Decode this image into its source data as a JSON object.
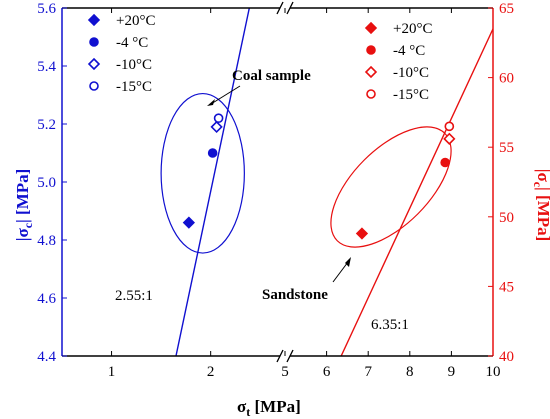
{
  "chart_data": {
    "type": "scatter",
    "x_axis": {
      "label_main": "σ",
      "label_sub": "t",
      "label_unit": " [MPa]",
      "left_segment": {
        "range": [
          0.5,
          2.75
        ],
        "ticks": [
          1,
          2
        ]
      },
      "right_segment": {
        "range": [
          5,
          10
        ],
        "ticks": [
          5,
          6,
          7,
          8,
          9,
          10
        ]
      },
      "break": true
    },
    "y_left": {
      "label_main": "|σ",
      "label_sub": "c",
      "label_unit": "| [MPa]",
      "range": [
        4.4,
        5.6
      ],
      "ticks": [
        "4.4",
        "4.6",
        "4.8",
        "5.0",
        "5.2",
        "5.4",
        "5.6"
      ],
      "color": "#1010d0"
    },
    "y_right": {
      "label_main": "|σ",
      "label_sub": "c",
      "label_unit": "| [MPa]",
      "range": [
        40,
        65
      ],
      "ticks": [
        "40",
        "45",
        "50",
        "55",
        "60",
        "65"
      ],
      "color": "#e81010"
    },
    "series": [
      {
        "group": "coal",
        "axis": "left",
        "color": "#1010d0",
        "points": [
          {
            "name": "+20°C",
            "marker": "diamond-filled",
            "x": 1.78,
            "y": 4.86
          },
          {
            "name": "-4 °C",
            "marker": "circle-filled",
            "x": 2.02,
            "y": 5.1
          },
          {
            "name": "-10°C",
            "marker": "diamond-open",
            "x": 2.06,
            "y": 5.19
          },
          {
            "name": "-15°C",
            "marker": "circle-open",
            "x": 2.08,
            "y": 5.22
          }
        ],
        "fit_line": {
          "x1": 1.65,
          "y1": 4.4,
          "x2": 2.39,
          "y2": 5.6
        },
        "ellipse": {
          "cx": 1.92,
          "cy": 5.03,
          "rx": 0.42,
          "ry": 0.275
        }
      },
      {
        "group": "sandstone",
        "axis": "right",
        "color": "#e81010",
        "points": [
          {
            "name": "+20°C",
            "marker": "diamond-filled",
            "x": 6.85,
            "y": 48.8
          },
          {
            "name": "-4 °C",
            "marker": "circle-filled",
            "x": 8.85,
            "y": 53.9
          },
          {
            "name": "-10°C",
            "marker": "diamond-open",
            "x": 8.95,
            "y": 55.6
          },
          {
            "name": "-15°C",
            "marker": "circle-open",
            "x": 8.95,
            "y": 56.5
          }
        ],
        "fit_line": {
          "x1": 6.35,
          "y1": 40.0,
          "x2": 10.0,
          "y2": 63.5
        }
      }
    ],
    "legend_labels": [
      "+20°C",
      "-4 °C",
      "-10°C",
      "-15°C"
    ],
    "legend_placement_left": "top-left",
    "legend_placement_right": "top-right",
    "annotations": {
      "coal_label": "Coal sample",
      "sandstone_label": "Sandstone",
      "coal_ratio": "2.55:1",
      "sandstone_ratio": "6.35:1"
    },
    "grid": false
  }
}
